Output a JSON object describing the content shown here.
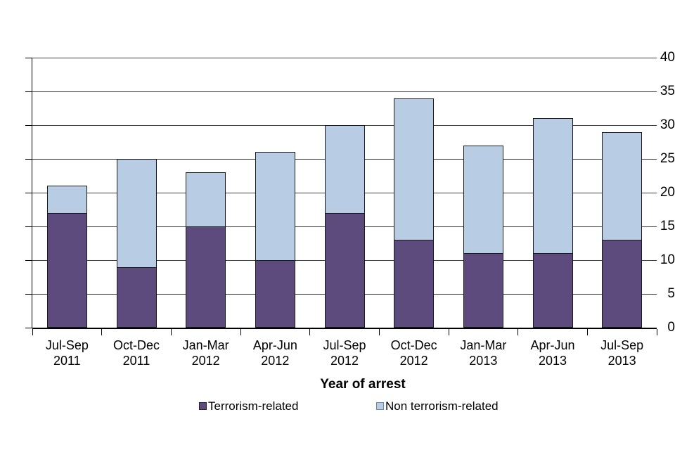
{
  "canvas": {
    "background": "#FFFFFF"
  },
  "chart_data": {
    "type": "bar",
    "stacked": true,
    "xlabel": "Year of arrest",
    "categories": [
      [
        "Jul-Sep",
        "2011"
      ],
      [
        "Oct-Dec",
        "2011"
      ],
      [
        "Jan-Mar",
        "2012"
      ],
      [
        "Apr-Jun",
        "2012"
      ],
      [
        "Jul-Sep",
        "2012"
      ],
      [
        "Oct-Dec",
        "2012"
      ],
      [
        "Jan-Mar",
        "2013"
      ],
      [
        "Apr-Jun",
        "2013"
      ],
      [
        "Jul-Sep",
        "2013"
      ]
    ],
    "series": [
      {
        "name": "Terrorism-related",
        "color": "#5E4B7D",
        "values": [
          17,
          9,
          15,
          10,
          17,
          13,
          11,
          11,
          13
        ]
      },
      {
        "name": "Non terrorism-related",
        "color": "#B8CCE4",
        "values": [
          4,
          16,
          8,
          16,
          13,
          21,
          16,
          20,
          16
        ]
      }
    ],
    "totals": [
      21,
      25,
      23,
      26,
      30,
      34,
      27,
      31,
      29
    ],
    "ylim": [
      0,
      40
    ],
    "yticks": [
      0,
      5,
      10,
      15,
      20,
      25,
      30,
      35,
      40
    ],
    "grid": true,
    "legend_position": "bottom"
  }
}
